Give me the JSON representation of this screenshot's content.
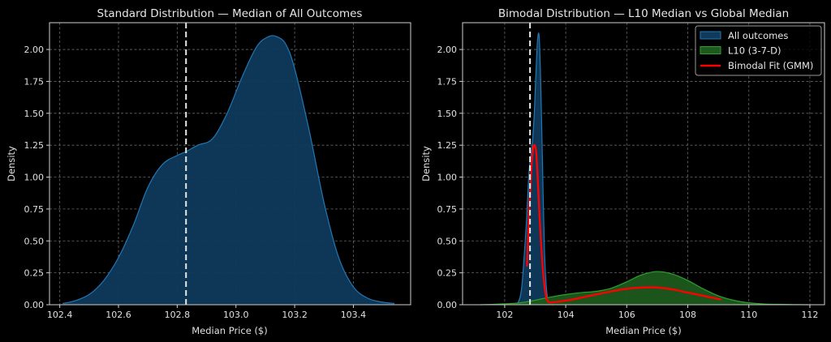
{
  "chart_data": [
    {
      "type": "area",
      "title": "Standard Distribution — Median of All Outcomes",
      "xlabel": "Median Price ($)",
      "ylabel": "Density",
      "xlim": [
        102.365,
        103.595
      ],
      "ylim": [
        0,
        2.21
      ],
      "grid": true,
      "xticks": [
        102.4,
        102.6,
        102.8,
        103.0,
        103.2,
        103.4
      ],
      "xtick_labels": [
        "102.4",
        "102.6",
        "102.8",
        "103.0",
        "103.2",
        "103.4"
      ],
      "yticks": [
        0,
        0.25,
        0.5,
        0.75,
        1.0,
        1.25,
        1.5,
        1.75,
        2.0
      ],
      "ytick_labels": [
        "0.00",
        "0.25",
        "0.50",
        "0.75",
        "1.00",
        "1.25",
        "1.50",
        "1.75",
        "2.00"
      ],
      "median_line": {
        "x": 102.83,
        "style": "dashed",
        "color": "#e8e8e8"
      },
      "series": [
        {
          "name": "All outcomes",
          "kind": "kde-fill",
          "fill": "#0f3a5c",
          "stroke": "#1f77b4",
          "x": [
            102.41,
            102.45,
            102.5,
            102.55,
            102.6,
            102.65,
            102.7,
            102.75,
            102.8,
            102.83,
            102.87,
            102.92,
            102.97,
            103.02,
            103.07,
            103.11,
            103.14,
            103.17,
            103.2,
            103.25,
            103.3,
            103.35,
            103.4,
            103.45,
            103.5,
            103.54
          ],
          "y": [
            0.01,
            0.03,
            0.08,
            0.19,
            0.37,
            0.62,
            0.92,
            1.1,
            1.17,
            1.2,
            1.25,
            1.3,
            1.5,
            1.78,
            2.02,
            2.1,
            2.1,
            2.04,
            1.85,
            1.36,
            0.8,
            0.37,
            0.14,
            0.05,
            0.02,
            0.01
          ]
        }
      ]
    },
    {
      "type": "area",
      "title": "Bimodal Distribution — L10 Median vs Global Median",
      "xlabel": "Median Price ($)",
      "ylabel": "Density",
      "xlim": [
        100.62,
        112.48
      ],
      "ylim": [
        0,
        2.21
      ],
      "grid": true,
      "xticks": [
        102,
        104,
        106,
        108,
        110,
        112
      ],
      "xtick_labels": [
        "102",
        "104",
        "106",
        "108",
        "110",
        "112"
      ],
      "yticks": [
        0,
        0.25,
        0.5,
        0.75,
        1.0,
        1.25,
        1.5,
        1.75,
        2.0
      ],
      "ytick_labels": [
        "0.00",
        "0.25",
        "0.50",
        "0.75",
        "1.00",
        "1.25",
        "1.50",
        "1.75",
        "2.00"
      ],
      "median_line": {
        "x": 102.83,
        "style": "dashed",
        "color": "#e8e8e8"
      },
      "legend": {
        "placement": "top-right",
        "entries": [
          {
            "label": "All outcomes",
            "kind": "patch",
            "fill": "#0f3a5c",
            "stroke": "#1f77b4"
          },
          {
            "label": "L10 (3-7-D)",
            "kind": "patch",
            "fill": "#1d5a1d",
            "stroke": "#2ca02c"
          },
          {
            "label": "Bimodal Fit (GMM)",
            "kind": "line",
            "stroke": "#ff0000"
          }
        ]
      },
      "series": [
        {
          "name": "All outcomes",
          "kind": "kde-fill",
          "fill": "#0f3a5c",
          "stroke": "#1f77b4",
          "x": [
            102.4,
            102.55,
            102.7,
            102.8,
            102.9,
            102.97,
            103.03,
            103.08,
            103.13,
            103.18,
            103.24,
            103.3,
            103.38,
            103.48,
            103.6
          ],
          "y": [
            0.0,
            0.12,
            0.6,
            1.05,
            1.25,
            1.5,
            1.85,
            2.08,
            2.1,
            1.75,
            1.1,
            0.45,
            0.1,
            0.01,
            0.0
          ]
        },
        {
          "name": "L10 (3-7-D)",
          "kind": "kde-fill",
          "fill": "#1d5a1d",
          "stroke": "#2ca02c",
          "x": [
            101.2,
            101.8,
            102.5,
            103.0,
            103.5,
            104.0,
            104.5,
            105.0,
            105.5,
            106.0,
            106.5,
            107.0,
            107.5,
            108.0,
            108.5,
            109.0,
            109.5,
            110.0,
            110.5,
            111.0,
            111.5,
            111.95
          ],
          "y": [
            0.0,
            0.005,
            0.015,
            0.035,
            0.06,
            0.08,
            0.095,
            0.105,
            0.13,
            0.18,
            0.235,
            0.26,
            0.24,
            0.19,
            0.125,
            0.07,
            0.035,
            0.015,
            0.006,
            0.003,
            0.001,
            0.0
          ]
        },
        {
          "name": "Bimodal Fit (GMM)",
          "kind": "line",
          "stroke": "#ff0000",
          "x": [
            102.73,
            102.8,
            102.87,
            102.93,
            102.98,
            103.03,
            103.08,
            103.13,
            103.2,
            103.28,
            103.36,
            103.45,
            103.6,
            103.8,
            104.2,
            104.8,
            105.4,
            106.0,
            106.5,
            107.0,
            107.5,
            108.0,
            108.5,
            109.1
          ],
          "y": [
            0.3,
            0.72,
            1.05,
            1.22,
            1.25,
            1.2,
            1.0,
            0.75,
            0.45,
            0.2,
            0.06,
            0.02,
            0.02,
            0.025,
            0.04,
            0.07,
            0.1,
            0.125,
            0.135,
            0.135,
            0.12,
            0.095,
            0.07,
            0.04
          ]
        }
      ]
    }
  ]
}
